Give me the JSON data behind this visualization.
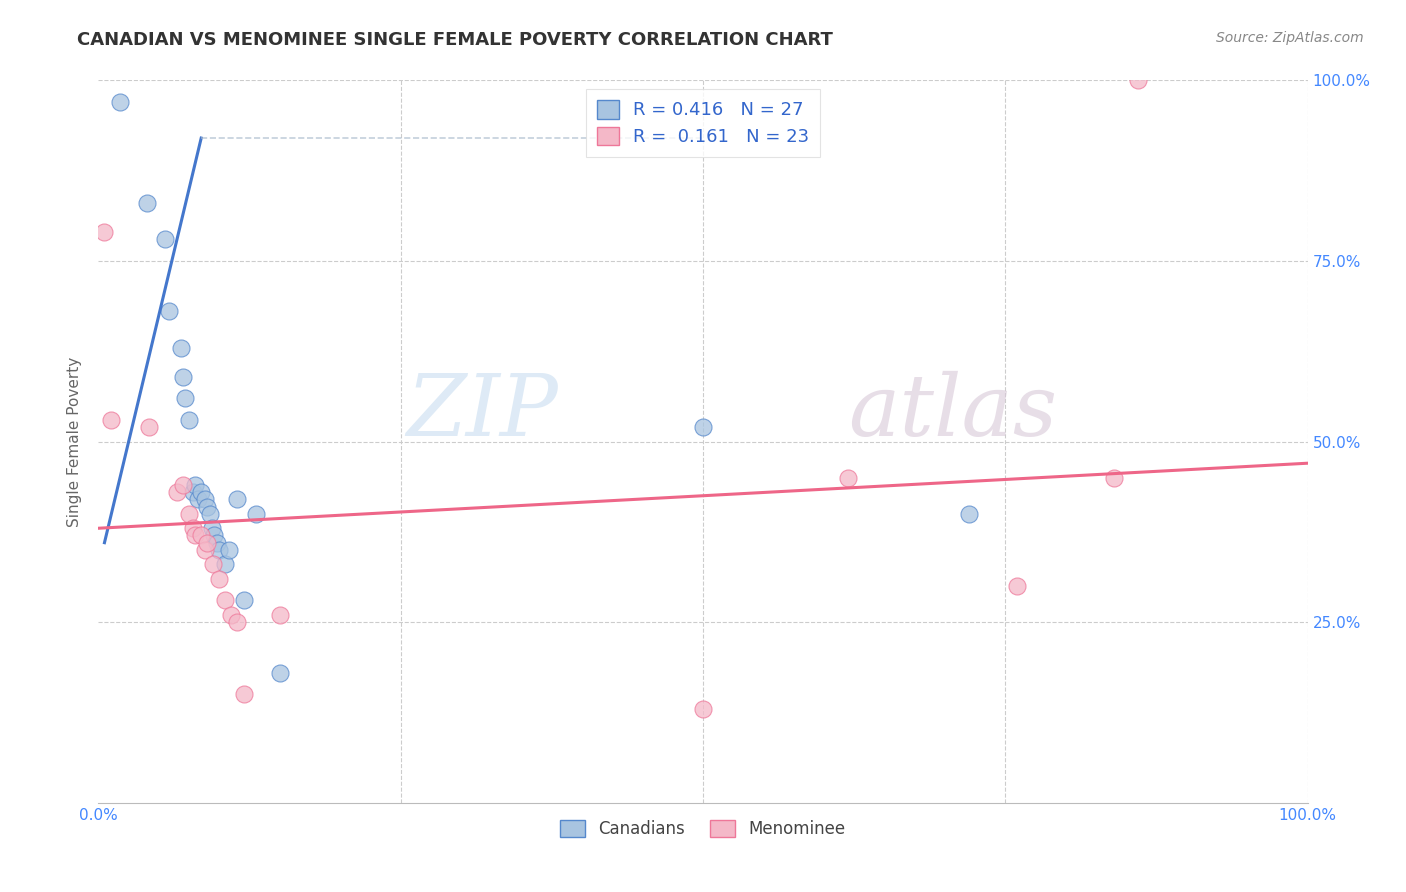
{
  "title": "CANADIAN VS MENOMINEE SINGLE FEMALE POVERTY CORRELATION CHART",
  "source": "Source: ZipAtlas.com",
  "ylabel": "Single Female Poverty",
  "xlim": [
    0.0,
    1.0
  ],
  "ylim": [
    0.0,
    1.0
  ],
  "legend_blue_R": "0.416",
  "legend_blue_N": "27",
  "legend_pink_R": "0.161",
  "legend_pink_N": "23",
  "blue_color": "#a8c4e0",
  "pink_color": "#f4b8c8",
  "blue_edge_color": "#5588cc",
  "pink_edge_color": "#ee7799",
  "blue_line_color": "#4477cc",
  "pink_line_color": "#ee6688",
  "blue_scatter": [
    [
      0.018,
      0.97
    ],
    [
      0.04,
      0.83
    ],
    [
      0.055,
      0.78
    ],
    [
      0.058,
      0.68
    ],
    [
      0.068,
      0.63
    ],
    [
      0.07,
      0.59
    ],
    [
      0.072,
      0.56
    ],
    [
      0.075,
      0.53
    ],
    [
      0.078,
      0.43
    ],
    [
      0.08,
      0.44
    ],
    [
      0.082,
      0.42
    ],
    [
      0.085,
      0.43
    ],
    [
      0.088,
      0.42
    ],
    [
      0.09,
      0.41
    ],
    [
      0.092,
      0.4
    ],
    [
      0.094,
      0.38
    ],
    [
      0.096,
      0.37
    ],
    [
      0.098,
      0.36
    ],
    [
      0.1,
      0.35
    ],
    [
      0.105,
      0.33
    ],
    [
      0.108,
      0.35
    ],
    [
      0.115,
      0.42
    ],
    [
      0.12,
      0.28
    ],
    [
      0.13,
      0.4
    ],
    [
      0.5,
      0.52
    ],
    [
      0.72,
      0.4
    ],
    [
      0.15,
      0.18
    ]
  ],
  "pink_scatter": [
    [
      0.005,
      0.79
    ],
    [
      0.01,
      0.53
    ],
    [
      0.042,
      0.52
    ],
    [
      0.065,
      0.43
    ],
    [
      0.07,
      0.44
    ],
    [
      0.075,
      0.4
    ],
    [
      0.078,
      0.38
    ],
    [
      0.08,
      0.37
    ],
    [
      0.085,
      0.37
    ],
    [
      0.088,
      0.35
    ],
    [
      0.09,
      0.36
    ],
    [
      0.095,
      0.33
    ],
    [
      0.1,
      0.31
    ],
    [
      0.105,
      0.28
    ],
    [
      0.11,
      0.26
    ],
    [
      0.115,
      0.25
    ],
    [
      0.12,
      0.15
    ],
    [
      0.15,
      0.26
    ],
    [
      0.5,
      0.13
    ],
    [
      0.62,
      0.45
    ],
    [
      0.76,
      0.3
    ],
    [
      0.84,
      0.45
    ],
    [
      0.86,
      1.0
    ]
  ],
  "blue_line": [
    [
      0.005,
      0.36
    ],
    [
      0.085,
      0.92
    ]
  ],
  "pink_line": [
    [
      0.0,
      0.38
    ],
    [
      1.0,
      0.47
    ]
  ],
  "dashed_line": [
    [
      0.085,
      0.92
    ],
    [
      0.5,
      0.92
    ]
  ],
  "watermark_zip": "ZIP",
  "watermark_atlas": "atlas",
  "background_color": "#ffffff",
  "grid_color": "#cccccc",
  "title_fontsize": 13,
  "source_fontsize": 10,
  "tick_color": "#4488ff",
  "ylabel_color": "#666666",
  "ylabel_fontsize": 11
}
